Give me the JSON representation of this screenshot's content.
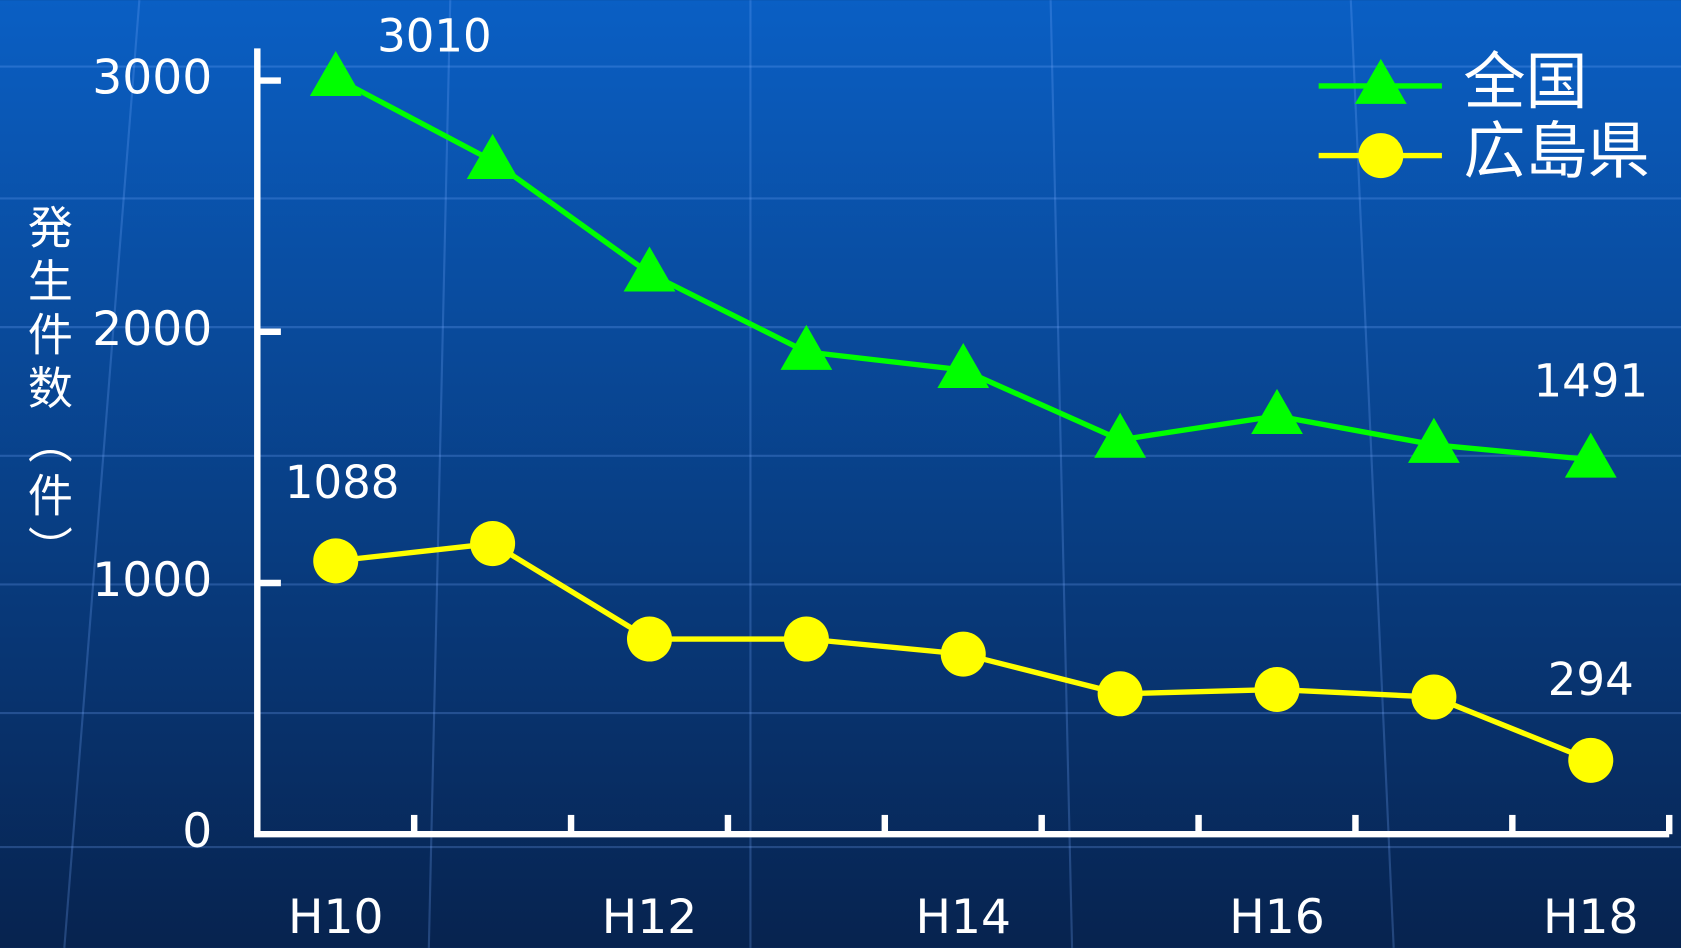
{
  "chart_data": {
    "type": "line",
    "y_label": "発生件数（件）",
    "categories": [
      "H10",
      null,
      "H12",
      null,
      "H14",
      null,
      "H16",
      null,
      "H18"
    ],
    "series": [
      {
        "name": "全国",
        "color": "#00ff00",
        "marker": "triangle",
        "values": [
          3010,
          2680,
          2232,
          1920,
          1848,
          1570,
          1665,
          1550,
          1491
        ]
      },
      {
        "name": "広島県",
        "color": "#ffff00",
        "marker": "circle",
        "values": [
          1088,
          1157,
          777,
          777,
          717,
          559,
          576,
          546,
          294
        ]
      }
    ],
    "data_labels": "ends",
    "ylim": [
      0,
      3000
    ],
    "yticks": [
      0,
      1000,
      2000,
      3000
    ],
    "legend": "top-right"
  }
}
